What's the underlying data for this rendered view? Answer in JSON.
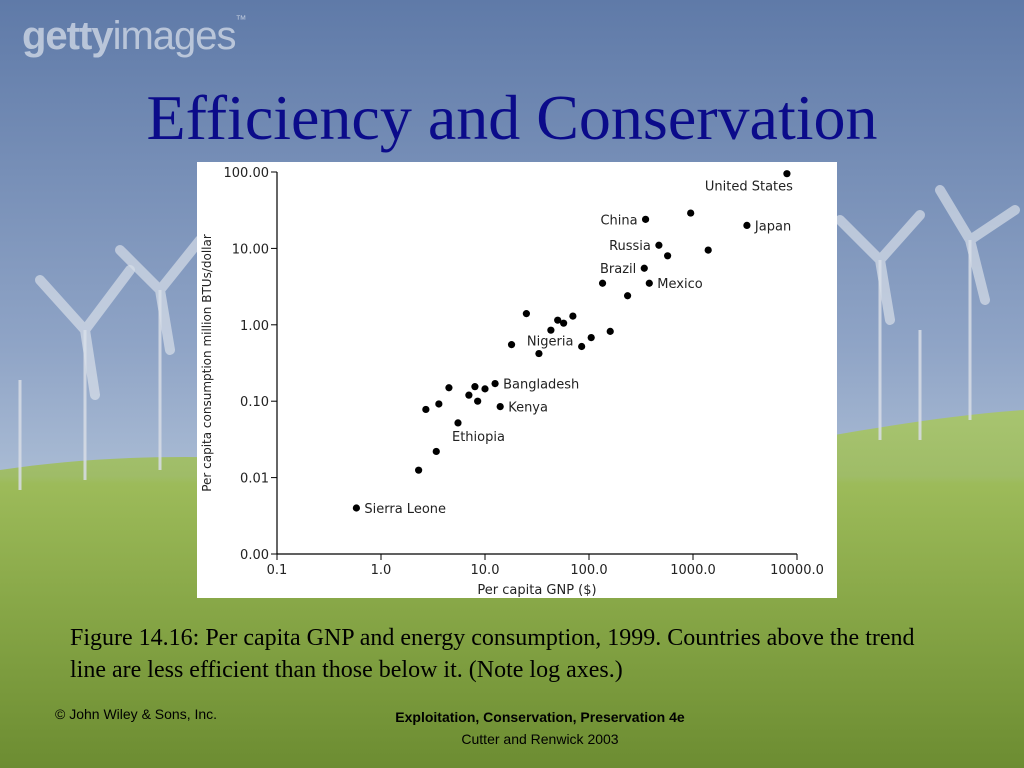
{
  "watermark": {
    "bold": "getty",
    "light": "images",
    "tm": "™"
  },
  "slide": {
    "title": "Efficiency and Conservation",
    "caption": "Figure 14.16: Per capita GNP and energy consumption, 1999.  Countries above the trend line are less efficient than those below it. (Note log axes.)",
    "footer_left": "© John Wiley & Sons, Inc.",
    "footer_title": "Exploitation, Conservation, Preservation 4e",
    "footer_authors": "Cutter and Renwick 2003"
  },
  "colors": {
    "title": "#0b0b8a",
    "sky": "#6f86ad",
    "grass": "#8fb13f",
    "points": "#000000"
  },
  "chart_data": {
    "type": "scatter",
    "xlabel": "Per capita GNP ($)",
    "ylabel": "Per capita consumption million BTUs/dollar",
    "x_scale": "log",
    "y_scale": "log",
    "xlim": [
      0.1,
      10000
    ],
    "ylim": [
      0.001,
      100
    ],
    "x_ticks": [
      0.1,
      1,
      10,
      100,
      1000,
      10000
    ],
    "x_tick_labels": [
      "0.1",
      "1.0",
      "10.0",
      "100.0",
      "1000.0",
      "10000.0"
    ],
    "y_ticks": [
      0.001,
      0.01,
      0.1,
      1,
      10,
      100
    ],
    "y_tick_labels": [
      "0.00",
      "0.01",
      "0.10",
      "1.00",
      "10.00",
      "100.00"
    ],
    "grid": false,
    "points": [
      {
        "x": 0.58,
        "y": 0.004,
        "label": "Sierra Leone"
      },
      {
        "x": 2.3,
        "y": 0.0125,
        "label": ""
      },
      {
        "x": 3.4,
        "y": 0.022,
        "label": ""
      },
      {
        "x": 5.5,
        "y": 0.052,
        "label": "Ethiopia"
      },
      {
        "x": 2.7,
        "y": 0.078,
        "label": ""
      },
      {
        "x": 3.6,
        "y": 0.092,
        "label": ""
      },
      {
        "x": 4.5,
        "y": 0.15,
        "label": ""
      },
      {
        "x": 7,
        "y": 0.12,
        "label": ""
      },
      {
        "x": 8.5,
        "y": 0.1,
        "label": ""
      },
      {
        "x": 8,
        "y": 0.155,
        "label": ""
      },
      {
        "x": 10,
        "y": 0.145,
        "label": ""
      },
      {
        "x": 12.5,
        "y": 0.17,
        "label": "Bangladesh"
      },
      {
        "x": 14,
        "y": 0.085,
        "label": "Kenya"
      },
      {
        "x": 18,
        "y": 0.55,
        "label": ""
      },
      {
        "x": 25,
        "y": 1.4,
        "label": ""
      },
      {
        "x": 33,
        "y": 0.42,
        "label": "Nigeria"
      },
      {
        "x": 43,
        "y": 0.85,
        "label": ""
      },
      {
        "x": 50,
        "y": 1.15,
        "label": ""
      },
      {
        "x": 57,
        "y": 1.05,
        "label": ""
      },
      {
        "x": 70,
        "y": 1.3,
        "label": ""
      },
      {
        "x": 85,
        "y": 0.52,
        "label": ""
      },
      {
        "x": 105,
        "y": 0.68,
        "label": ""
      },
      {
        "x": 135,
        "y": 3.5,
        "label": ""
      },
      {
        "x": 160,
        "y": 0.82,
        "label": ""
      },
      {
        "x": 235,
        "y": 2.4,
        "label": ""
      },
      {
        "x": 350,
        "y": 24,
        "label": "China"
      },
      {
        "x": 340,
        "y": 5.5,
        "label": "Brazil"
      },
      {
        "x": 380,
        "y": 3.5,
        "label": "Mexico"
      },
      {
        "x": 470,
        "y": 11,
        "label": "Russia"
      },
      {
        "x": 570,
        "y": 8,
        "label": ""
      },
      {
        "x": 950,
        "y": 29,
        "label": ""
      },
      {
        "x": 1400,
        "y": 9.5,
        "label": ""
      },
      {
        "x": 3300,
        "y": 20,
        "label": "Japan"
      },
      {
        "x": 8000,
        "y": 95,
        "label": "United States"
      }
    ]
  }
}
